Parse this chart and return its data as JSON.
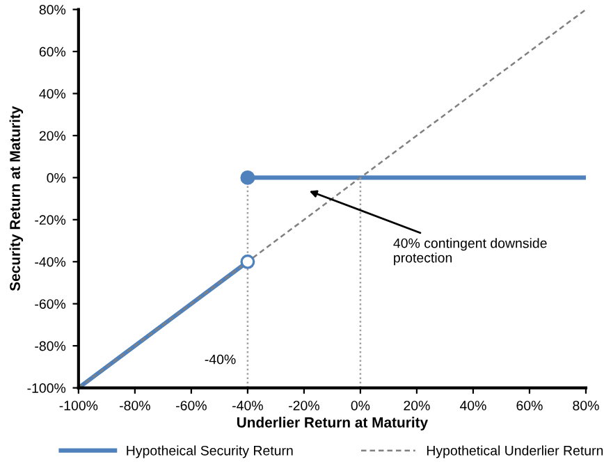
{
  "chart_data": {
    "type": "line",
    "xlabel": "Underlier Return at Maturity",
    "ylabel": "Security Return at Maturity",
    "xlim": [
      -100,
      80
    ],
    "ylim": [
      -100,
      80
    ],
    "xticks": [
      {
        "value": -100,
        "label": "-100%"
      },
      {
        "value": -80,
        "label": "-80%"
      },
      {
        "value": -60,
        "label": "-60%"
      },
      {
        "value": -40,
        "label": "-40%"
      },
      {
        "value": -20,
        "label": "-20%"
      },
      {
        "value": 0,
        "label": "0%"
      },
      {
        "value": 20,
        "label": "20%"
      },
      {
        "value": 40,
        "label": "40%"
      },
      {
        "value": 60,
        "label": "60%"
      },
      {
        "value": 80,
        "label": "80%"
      }
    ],
    "yticks": [
      {
        "value": -100,
        "label": "-100%"
      },
      {
        "value": -80,
        "label": "-80%"
      },
      {
        "value": -60,
        "label": "-60%"
      },
      {
        "value": -40,
        "label": "-40%"
      },
      {
        "value": -20,
        "label": "-20%"
      },
      {
        "value": 0,
        "label": "0%"
      },
      {
        "value": 20,
        "label": "20%"
      },
      {
        "value": 40,
        "label": "40%"
      },
      {
        "value": 60,
        "label": "60%"
      },
      {
        "value": 80,
        "label": "80%"
      }
    ],
    "grid": false,
    "legend": "bottom",
    "series": [
      {
        "name": "Hypotheical Security Return",
        "color": "#4f81bd",
        "x": [
          -100,
          -40
        ],
        "values": [
          -100,
          -40
        ],
        "line_style": "solid",
        "marker": "none"
      },
      {
        "color": "#4f81bd",
        "x": [
          -40,
          80
        ],
        "values": [
          0,
          0
        ],
        "line_style": "solid",
        "marker": "none"
      },
      {
        "name": "Hypothetical Underlier Return",
        "color": "#808080",
        "x": [
          -100,
          80
        ],
        "values": [
          -100,
          80
        ],
        "line_style": "dashed",
        "marker": "none"
      },
      {
        "color": "#a0a0a0",
        "x": [
          -40,
          -40
        ],
        "values": [
          -100,
          0
        ],
        "line_style": "dotted",
        "marker": "none"
      },
      {
        "color": "#a0a0a0",
        "x": [
          0,
          0
        ],
        "values": [
          -100,
          0
        ],
        "line_style": "dotted",
        "marker": "none"
      },
      {
        "type": "scatter",
        "color": "#4f81bd",
        "colors": [
          "#4f81bd"
        ],
        "x": [
          -40
        ],
        "values": [
          0
        ],
        "marker": "circle"
      },
      {
        "type": "scatter",
        "color": "#4f81bd",
        "colors": [
          "#ffffff"
        ],
        "x": [
          -40
        ],
        "values": [
          -40
        ],
        "marker": "circle"
      }
    ],
    "annotations": [
      {
        "text": "-40%",
        "x": -40,
        "y": -87
      },
      "40% contingent downside\nprotection"
    ]
  }
}
